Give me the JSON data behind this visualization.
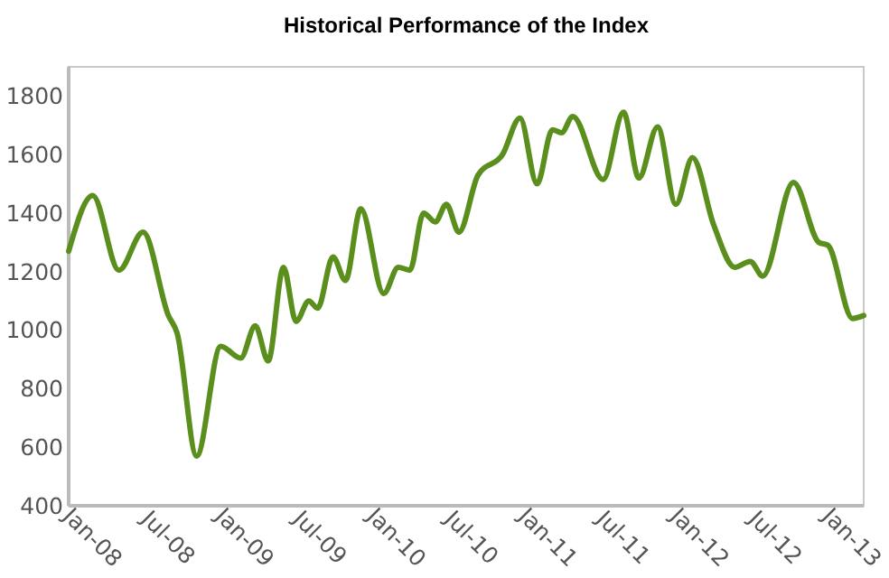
{
  "chart_data": {
    "type": "line",
    "title": "Historical Performance of the Index",
    "x": [
      "2008-01-01",
      "2008-02-28",
      "2008-05-01",
      "2008-06-28",
      "2008-08-28",
      "2008-09-18",
      "2008-11-04",
      "2009-01-01",
      "2009-02-18",
      "2009-03-25",
      "2009-04-25",
      "2009-06-01",
      "2009-07-01",
      "2009-08-01",
      "2009-08-22",
      "2009-09-28",
      "2009-10-28",
      "2009-12-04",
      "2010-01-28",
      "2010-03-04",
      "2010-04-01",
      "2010-05-04",
      "2010-06-01",
      "2010-06-28",
      "2010-07-28",
      "2010-09-12",
      "2010-11-10",
      "2010-12-22",
      "2011-02-01",
      "2011-03-10",
      "2011-04-01",
      "2011-04-28",
      "2011-07-10",
      "2011-08-28",
      "2011-10-04",
      "2011-11-18",
      "2012-01-01",
      "2012-02-10",
      "2012-04-01",
      "2012-05-22",
      "2012-06-28",
      "2012-07-28",
      "2012-10-10",
      "2012-12-10",
      "2013-01-01",
      "2013-03-01",
      "2013-03-28"
    ],
    "series": [
      {
        "color": "#5a8f1e",
        "values": [
          1270,
          1460,
          1205,
          1335,
          1050,
          990,
          570,
          945,
          905,
          1015,
          895,
          1215,
          1030,
          1100,
          1075,
          1250,
          1170,
          1415,
          1125,
          1215,
          1205,
          1400,
          1370,
          1430,
          1335,
          1530,
          1600,
          1725,
          1500,
          1685,
          1675,
          1730,
          1515,
          1745,
          1520,
          1695,
          1430,
          1590,
          1360,
          1215,
          1235,
          1185,
          1505,
          1300,
          1290,
          1040,
          1050
        ]
      }
    ],
    "xlim": [
      "2008-01-01",
      "2013-03-28"
    ],
    "xticks": [
      {
        "value": "2008-01-01",
        "label": "Jan-08"
      },
      {
        "value": "2008-07-01",
        "label": "Jul-08"
      },
      {
        "value": "2009-01-01",
        "label": "Jan-09"
      },
      {
        "value": "2009-07-01",
        "label": "Jul-09"
      },
      {
        "value": "2010-01-01",
        "label": "Jan-10"
      },
      {
        "value": "2010-07-01",
        "label": "Jul-10"
      },
      {
        "value": "2011-01-01",
        "label": "Jan-11"
      },
      {
        "value": "2011-07-01",
        "label": "Jul-11"
      },
      {
        "value": "2012-01-01",
        "label": "Jan-12"
      },
      {
        "value": "2012-07-01",
        "label": "Jul-12"
      },
      {
        "value": "2013-01-01",
        "label": "Jan-13"
      }
    ],
    "ylim": [
      400,
      1900
    ],
    "yticks": [
      400,
      600,
      800,
      1000,
      1200,
      1400,
      1600,
      1800
    ],
    "grid": false,
    "marker": "none",
    "line_style": "solid"
  }
}
